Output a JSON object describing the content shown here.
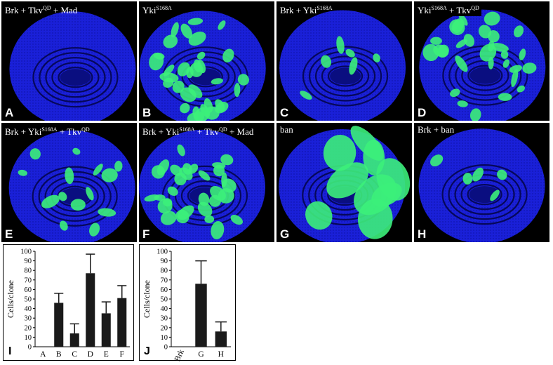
{
  "panels": [
    {
      "letter": "A",
      "label_parts": [
        "Brk + Tkv",
        "QD",
        " + Mad"
      ],
      "clones": 0,
      "style": "plain"
    },
    {
      "letter": "B",
      "label_parts": [
        "Yki",
        "S168A",
        ""
      ],
      "clones": 34,
      "style": "boxed"
    },
    {
      "letter": "C",
      "label_parts": [
        "Brk + Yki",
        "S168A",
        ""
      ],
      "clones": 6,
      "style": "plain"
    },
    {
      "letter": "D",
      "label_parts": [
        "Yki",
        "S168A",
        " + Tkv"
      ],
      "label_sup2": "QD",
      "clones": 30,
      "style": "boxed"
    },
    {
      "letter": "E",
      "label_parts": [
        "Brk + Yki",
        "S168A",
        " + Tkv"
      ],
      "label_sup2": "QD",
      "clones": 14,
      "style": "plain"
    },
    {
      "letter": "F",
      "label_parts": [
        "Brk + Yki",
        "S168A",
        " + Tkv"
      ],
      "label_sup2": "QD",
      "label_tail": " + Mad",
      "clones": 30,
      "style": "plain"
    },
    {
      "letter": "G",
      "label_parts": [
        "ban",
        "",
        ""
      ],
      "clones": 9,
      "style": "plain"
    },
    {
      "letter": "H",
      "label_parts": [
        "Brk + ban",
        "",
        ""
      ],
      "clones": 5,
      "style": "plain"
    }
  ],
  "colors": {
    "nuclei": "#1a20d8",
    "clone": "#3cf07a",
    "background": "#000000"
  },
  "chart_data": [
    {
      "type": "bar",
      "panel_letter": "I",
      "ylabel": "Cells/clone",
      "ylim": [
        0,
        100
      ],
      "yticks": [
        "0",
        "10",
        "20",
        "30",
        "40",
        "50",
        "60",
        "70",
        "80",
        "90",
        "100"
      ],
      "categories": [
        "A",
        "B",
        "C",
        "D",
        "E",
        "F"
      ],
      "values": [
        0,
        46,
        14,
        77,
        35,
        51
      ],
      "errors": [
        0,
        10,
        10,
        20,
        12,
        13
      ]
    },
    {
      "type": "bar",
      "panel_letter": "J",
      "ylabel": "Cells/clone",
      "ylim": [
        0,
        100
      ],
      "yticks": [
        "0",
        "10",
        "20",
        "30",
        "40",
        "50",
        "60",
        "70",
        "80",
        "90",
        "100"
      ],
      "categories": [
        "Brk",
        "G",
        "H"
      ],
      "values": [
        0,
        66,
        16
      ],
      "errors": [
        0,
        24,
        10
      ]
    }
  ]
}
